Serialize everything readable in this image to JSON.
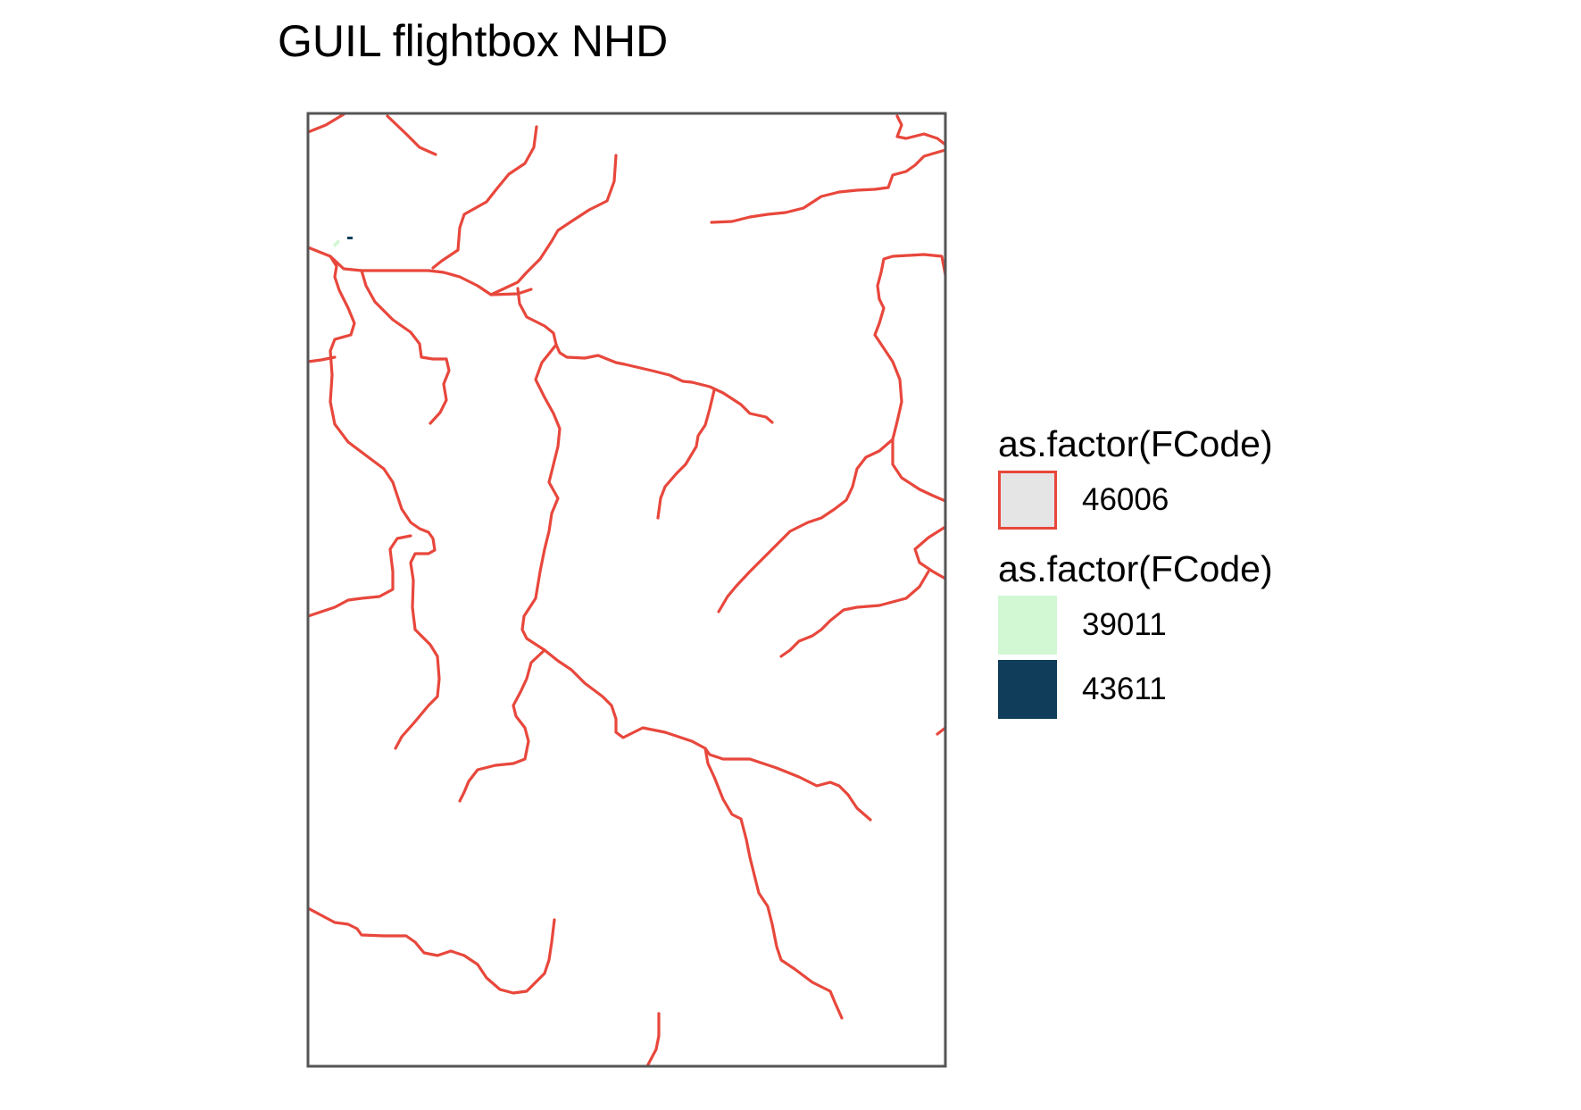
{
  "title": "GUIL flightbox NHD",
  "colors": {
    "flowline": "#e8473c",
    "frame": "#555555",
    "line_key_fill": "#e5e5e5",
    "code_39011": "#d1f7d3",
    "code_43611": "#0f3d5a"
  },
  "legend": [
    {
      "title": "as.factor(FCode)",
      "items": [
        {
          "label": "46006",
          "kind": "line",
          "color": "#e8473c",
          "fill": "#e5e5e5"
        }
      ]
    },
    {
      "title": "as.factor(FCode)",
      "items": [
        {
          "label": "39011",
          "kind": "fill",
          "color": "#d1f7d3"
        },
        {
          "label": "43611",
          "kind": "fill",
          "color": "#0f3d5a"
        }
      ]
    }
  ]
}
